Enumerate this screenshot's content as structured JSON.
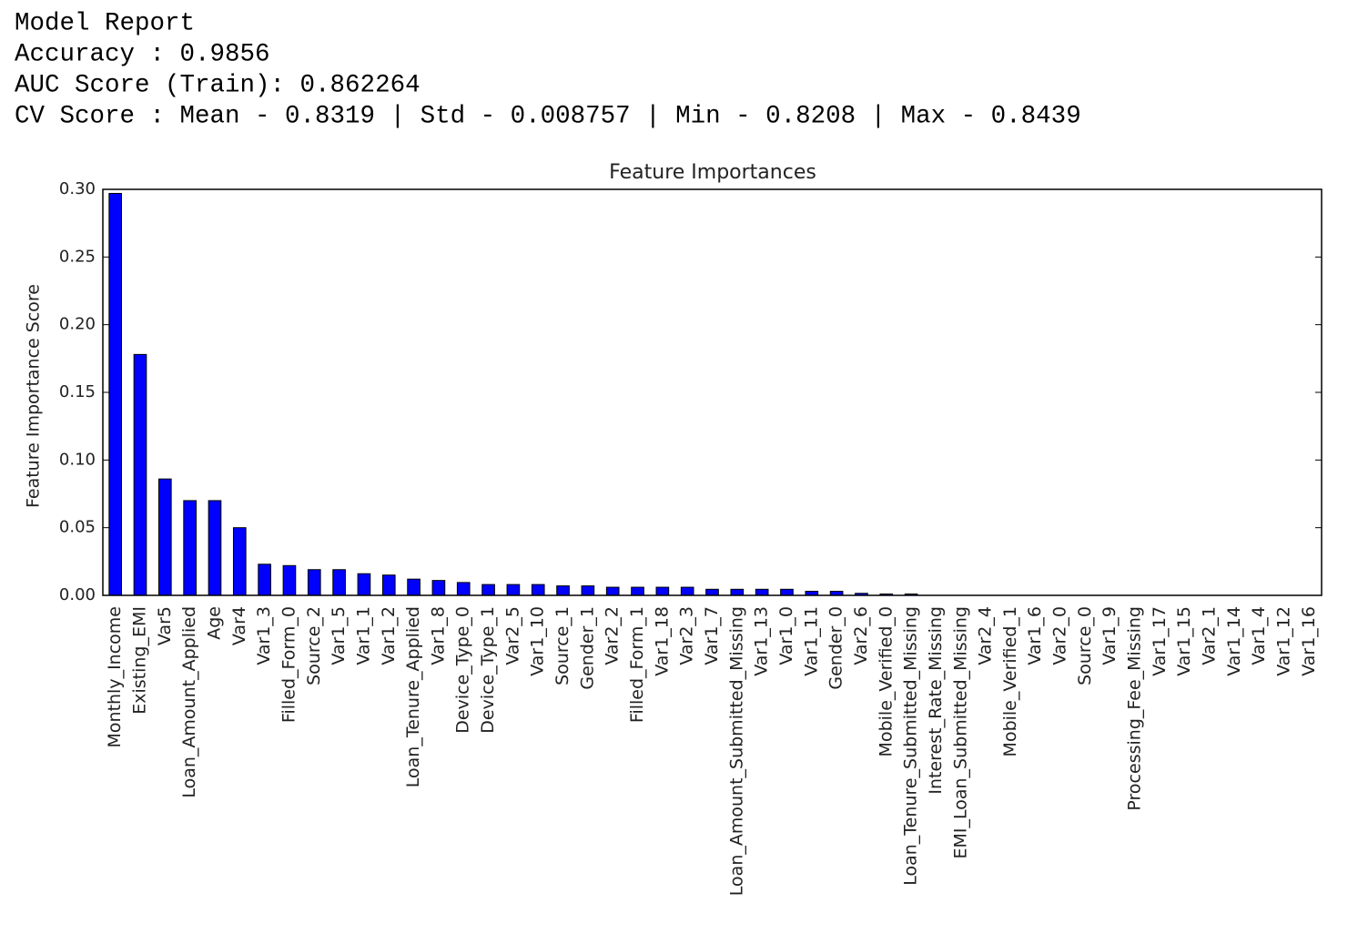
{
  "report": {
    "lines": [
      "Model Report",
      "Accuracy : 0.9856",
      "AUC Score (Train): 0.862264",
      "CV Score : Mean - 0.8319 | Std - 0.008757 | Min - 0.8208 | Max - 0.8439"
    ]
  },
  "chart_data": {
    "type": "bar",
    "title": "Feature Importances",
    "y_label": "Feature Importance Score",
    "color": "#0000ff",
    "categories": [
      "Monthly_Income",
      "Existing_EMI",
      "Var5",
      "Loan_Amount_Applied",
      "Age",
      "Var4",
      "Var1_3",
      "Filled_Form_0",
      "Source_2",
      "Var1_5",
      "Var1_1",
      "Var1_2",
      "Loan_Tenure_Applied",
      "Var1_8",
      "Device_Type_0",
      "Device_Type_1",
      "Var2_5",
      "Var1_10",
      "Source_1",
      "Gender_1",
      "Var2_2",
      "Filled_Form_1",
      "Var1_18",
      "Var2_3",
      "Var1_7",
      "Loan_Amount_Submitted_Missing",
      "Var1_13",
      "Var1_0",
      "Var1_11",
      "Gender_0",
      "Var2_6",
      "Mobile_Verified_0",
      "Loan_Tenure_Submitted_Missing",
      "Interest_Rate_Missing",
      "EMI_Loan_Submitted_Missing",
      "Var2_4",
      "Mobile_Verified_1",
      "Var1_6",
      "Var2_0",
      "Source_0",
      "Var1_9",
      "Processing_Fee_Missing",
      "Var1_17",
      "Var1_15",
      "Var2_1",
      "Var1_14",
      "Var1_4",
      "Var1_12",
      "Var1_16"
    ],
    "values": [
      0.297,
      0.178,
      0.086,
      0.07,
      0.07,
      0.05,
      0.023,
      0.022,
      0.019,
      0.019,
      0.016,
      0.015,
      0.012,
      0.011,
      0.0095,
      0.008,
      0.008,
      0.008,
      0.007,
      0.007,
      0.006,
      0.006,
      0.006,
      0.006,
      0.0045,
      0.0045,
      0.0045,
      0.0045,
      0.003,
      0.003,
      0.0015,
      0.001,
      0.001,
      0,
      0,
      0,
      0,
      0,
      0,
      0,
      0,
      0,
      0,
      0,
      0,
      0,
      0,
      0,
      0
    ],
    "ylim": [
      0,
      0.3
    ],
    "yticks": [
      {
        "value": 0,
        "label": "0.00"
      },
      {
        "value": 0.05,
        "label": "0.05"
      },
      {
        "value": 0.1,
        "label": "0.10"
      },
      {
        "value": 0.15,
        "label": "0.15"
      },
      {
        "value": 0.2,
        "label": "0.20"
      },
      {
        "value": 0.25,
        "label": "0.25"
      },
      {
        "value": 0.3,
        "label": "0.30"
      }
    ]
  }
}
